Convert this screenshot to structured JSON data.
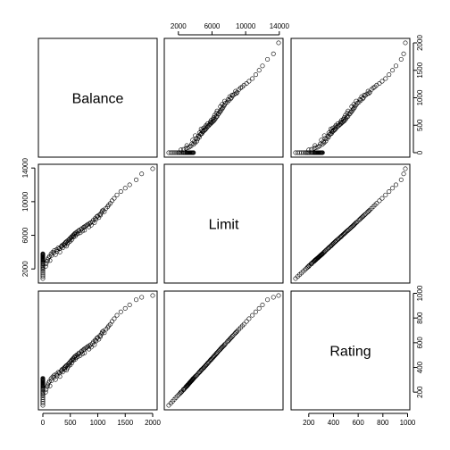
{
  "chart_data": {
    "type": "scatter",
    "layout": "pairs-matrix",
    "variables": [
      "Balance",
      "Limit",
      "Rating"
    ],
    "ranges": {
      "Balance": [
        0,
        2000
      ],
      "Limit": [
        855,
        13913
      ],
      "Rating": [
        93,
        982
      ]
    },
    "ticks": {
      "Balance": [
        "0",
        "500",
        "1000",
        "1500",
        "2000"
      ],
      "Limit": [
        "2000",
        "6000",
        "10000",
        "14000"
      ],
      "Rating": [
        "200",
        "400",
        "600",
        "800",
        "1000"
      ]
    },
    "axes": {
      "top": [
        {
          "col": 1,
          "var": "Limit"
        }
      ],
      "right": [
        {
          "row": 0,
          "var": "Balance"
        },
        {
          "row": 2,
          "var": "Rating"
        }
      ],
      "bottom": [
        {
          "col": 0,
          "var": "Balance"
        },
        {
          "col": 2,
          "var": "Rating"
        }
      ],
      "left": [
        {
          "row": 1,
          "var": "Limit"
        }
      ]
    },
    "data": {
      "Balance": [
        0,
        0,
        0,
        0,
        0,
        0,
        0,
        0,
        0,
        0,
        0,
        0,
        0,
        0,
        0,
        0,
        0,
        0,
        0,
        0,
        0,
        0,
        0,
        0,
        0,
        0,
        0,
        0,
        0,
        0,
        0,
        50,
        60,
        80,
        90,
        100,
        120,
        130,
        150,
        160,
        180,
        200,
        210,
        230,
        250,
        260,
        280,
        300,
        310,
        330,
        340,
        350,
        360,
        380,
        390,
        400,
        410,
        420,
        430,
        440,
        450,
        460,
        470,
        480,
        490,
        500,
        510,
        520,
        530,
        540,
        550,
        560,
        570,
        580,
        590,
        600,
        610,
        620,
        640,
        650,
        660,
        680,
        700,
        710,
        720,
        740,
        750,
        760,
        780,
        800,
        820,
        840,
        850,
        870,
        880,
        900,
        920,
        940,
        950,
        970,
        980,
        1000,
        1020,
        1040,
        1050,
        1070,
        1080,
        1100,
        1120,
        1150,
        1180,
        1200,
        1230,
        1260,
        1300,
        1350,
        1420,
        1500,
        1580,
        1700,
        1800,
        2000
      ],
      "Limit": [
        855,
        1100,
        1300,
        1500,
        1700,
        1900,
        2050,
        2200,
        2350,
        2450,
        2600,
        2700,
        2800,
        2900,
        3000,
        3050,
        3100,
        3150,
        3200,
        3250,
        3300,
        3350,
        3400,
        3450,
        3500,
        3550,
        3600,
        3650,
        3700,
        3750,
        3800,
        2300,
        2600,
        2900,
        3100,
        3300,
        3500,
        3000,
        3800,
        3600,
        4000,
        3900,
        4200,
        3700,
        4300,
        4100,
        4500,
        4400,
        4000,
        4600,
        4700,
        4800,
        4500,
        4900,
        5000,
        4800,
        5100,
        5200,
        4700,
        5300,
        5000,
        5400,
        5200,
        5500,
        5600,
        5300,
        5700,
        5800,
        5500,
        5900,
        6000,
        5800,
        6100,
        6200,
        5900,
        6300,
        6100,
        6400,
        6200,
        6500,
        6600,
        6300,
        6700,
        6800,
        6500,
        6900,
        7000,
        6600,
        7100,
        7200,
        7300,
        7000,
        7400,
        7500,
        7200,
        7600,
        7800,
        7500,
        8000,
        7900,
        8200,
        8300,
        8100,
        8500,
        8400,
        8700,
        8900,
        9000,
        8800,
        9200,
        9400,
        9600,
        9800,
        10100,
        10400,
        10800,
        11200,
        11600,
        12000,
        12600,
        13300,
        13913
      ],
      "Rating": [
        93,
        110,
        125,
        140,
        155,
        170,
        180,
        190,
        200,
        208,
        218,
        226,
        234,
        241,
        248,
        252,
        256,
        260,
        264,
        268,
        272,
        276,
        280,
        284,
        288,
        292,
        296,
        300,
        304,
        308,
        312,
        200,
        222,
        244,
        258,
        274,
        288,
        250,
        310,
        294,
        324,
        318,
        338,
        302,
        346,
        332,
        360,
        354,
        326,
        368,
        376,
        384,
        362,
        390,
        398,
        384,
        404,
        412,
        378,
        418,
        396,
        426,
        412,
        434,
        442,
        420,
        450,
        458,
        436,
        464,
        472,
        458,
        480,
        488,
        466,
        494,
        480,
        502,
        488,
        510,
        518,
        496,
        526,
        534,
        510,
        540,
        548,
        518,
        556,
        562,
        570,
        548,
        576,
        584,
        564,
        592,
        606,
        584,
        620,
        614,
        636,
        642,
        628,
        658,
        650,
        672,
        686,
        694,
        680,
        708,
        722,
        736,
        750,
        772,
        794,
        822,
        850,
        878,
        906,
        948,
        968,
        982
      ]
    }
  }
}
